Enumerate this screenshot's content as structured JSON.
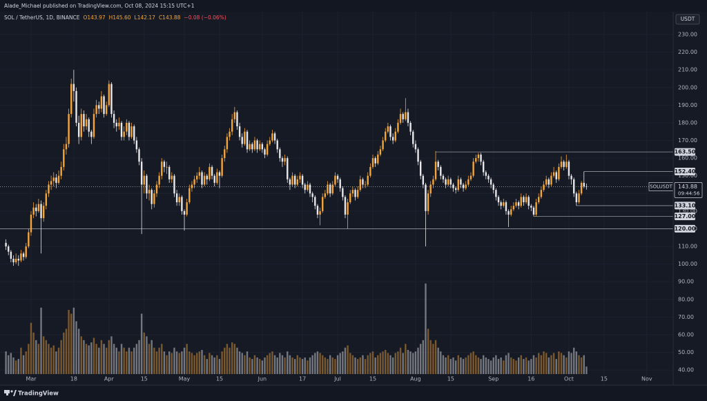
{
  "header": {
    "text": "Alade_Michael published on TradingView.com, Oct 08, 2024 15:15 UTC+1"
  },
  "footer": {
    "brand": "TradingView"
  },
  "chart_data": {
    "type": "candlestick",
    "symbol": "SOL / TetherUS, 1D, BINANCE",
    "legend": [
      "O143.97",
      "H145.60",
      "L142.17",
      "C143.88",
      "−0.08 (−0.06%)"
    ],
    "currency": "USDT",
    "up_color": "#f5a63a",
    "down_color": "#e8e8ea",
    "open": [
      112,
      110,
      107,
      103,
      101,
      103,
      102,
      106,
      104,
      110,
      118,
      128,
      132,
      130,
      134,
      126,
      133,
      140,
      145,
      147,
      149,
      146,
      150,
      155,
      165,
      168,
      185,
      202,
      198,
      180,
      172,
      185,
      178,
      182,
      175,
      172,
      185,
      190,
      188,
      195,
      185,
      190,
      202,
      185,
      180,
      178,
      180,
      172,
      175,
      180,
      172,
      178,
      170,
      165,
      158,
      145,
      150,
      140,
      142,
      134,
      140,
      145,
      150,
      158,
      155,
      155,
      148,
      150,
      140,
      135,
      138,
      130,
      128,
      135,
      143,
      145,
      148,
      150,
      152,
      145,
      150,
      148,
      155,
      150,
      146,
      152,
      150,
      160,
      165,
      172,
      175,
      182,
      186,
      178,
      172,
      168,
      175,
      165,
      168,
      165,
      170,
      165,
      168,
      165,
      162,
      168,
      170,
      174,
      170,
      165,
      160,
      158,
      160,
      148,
      145,
      150,
      145,
      148,
      150,
      145,
      142,
      145,
      140,
      138,
      133,
      128,
      130,
      138,
      140,
      145,
      140,
      145,
      150,
      148,
      143,
      138,
      128,
      135,
      140,
      142,
      138,
      142,
      148,
      145,
      145,
      150,
      155,
      160,
      157,
      162,
      165,
      170,
      175,
      178,
      172,
      170,
      175,
      180,
      185,
      182,
      186,
      180,
      175,
      168,
      165,
      158,
      150,
      145,
      130,
      140,
      145,
      148,
      158,
      155,
      150,
      148,
      145,
      148,
      145,
      143,
      142,
      148,
      145,
      143,
      145,
      148,
      150,
      158,
      160,
      162,
      158,
      152,
      150,
      148,
      145,
      142,
      138,
      135,
      133,
      135,
      130,
      128,
      131,
      133,
      135,
      133,
      138,
      135,
      138,
      133,
      132,
      128,
      135,
      138,
      142,
      145,
      148,
      145,
      150,
      152,
      148,
      155,
      158,
      155,
      158,
      150,
      148,
      140,
      135,
      140,
      146,
      143.97
    ],
    "high": [
      114,
      111,
      108,
      105,
      106,
      105,
      108,
      107,
      112,
      120,
      130,
      135,
      134,
      137,
      136,
      135,
      142,
      147,
      150,
      152,
      151,
      153,
      158,
      168,
      172,
      188,
      205,
      210,
      200,
      184,
      188,
      187,
      185,
      183,
      176,
      188,
      193,
      192,
      198,
      196,
      192,
      204,
      203,
      187,
      182,
      183,
      181,
      178,
      182,
      181,
      180,
      179,
      172,
      166,
      160,
      153,
      151,
      145,
      143,
      142,
      147,
      152,
      160,
      159,
      158,
      156,
      152,
      151,
      142,
      140,
      139,
      131,
      137,
      145,
      147,
      150,
      152,
      155,
      153,
      152,
      151,
      157,
      156,
      151,
      154,
      153,
      162,
      167,
      174,
      177,
      185,
      189,
      187,
      180,
      174,
      177,
      176,
      170,
      169,
      172,
      171,
      170,
      169,
      166,
      170,
      172,
      176,
      175,
      171,
      166,
      161,
      162,
      161,
      149,
      152,
      151,
      150,
      152,
      151,
      146,
      147,
      146,
      141,
      139,
      134,
      132,
      140,
      142,
      147,
      146,
      147,
      152,
      151,
      149,
      144,
      139,
      137,
      142,
      144,
      143,
      144,
      150,
      149,
      147,
      152,
      157,
      162,
      161,
      164,
      167,
      172,
      177,
      180,
      179,
      174,
      177,
      182,
      188,
      186,
      194,
      188,
      181,
      176,
      170,
      166,
      159,
      151,
      146,
      142,
      147,
      150,
      164,
      159,
      156,
      151,
      149,
      150,
      149,
      146,
      144,
      150,
      149,
      146,
      147,
      150,
      152,
      160,
      162,
      163,
      163,
      159,
      153,
      151,
      149,
      146,
      143,
      139,
      136,
      137,
      136,
      131,
      133,
      135,
      137,
      136,
      140,
      139,
      140,
      139,
      134,
      133,
      137,
      140,
      144,
      147,
      150,
      149,
      152,
      155,
      153,
      157,
      161,
      159,
      162,
      159,
      151,
      149,
      141,
      142,
      147,
      152.4,
      145.6
    ],
    "low": [
      108,
      105,
      101,
      99,
      100,
      99,
      101,
      102,
      103,
      109,
      116,
      126,
      127,
      129,
      106,
      124,
      131,
      138,
      142,
      144,
      143,
      145,
      148,
      153,
      162,
      166,
      183,
      192,
      178,
      168,
      170,
      175,
      176,
      172,
      168,
      171,
      183,
      185,
      186,
      183,
      184,
      189,
      183,
      177,
      175,
      176,
      170,
      170,
      173,
      170,
      171,
      168,
      163,
      156,
      117,
      140,
      137,
      136,
      131,
      132,
      138,
      143,
      148,
      152,
      151,
      146,
      146,
      138,
      133,
      133,
      128,
      119,
      127,
      134,
      141,
      143,
      146,
      148,
      143,
      144,
      145,
      147,
      148,
      144,
      145,
      143,
      149,
      158,
      163,
      170,
      173,
      180,
      176,
      170,
      166,
      167,
      163,
      164,
      163,
      164,
      163,
      164,
      163,
      160,
      161,
      167,
      169,
      168,
      163,
      158,
      155,
      156,
      146,
      142,
      144,
      143,
      144,
      146,
      143,
      140,
      141,
      138,
      135,
      131,
      126,
      122,
      129,
      137,
      139,
      138,
      139,
      144,
      146,
      141,
      136,
      126,
      120,
      134,
      138,
      136,
      137,
      141,
      143,
      143,
      144,
      149,
      154,
      155,
      156,
      161,
      164,
      169,
      174,
      170,
      168,
      169,
      174,
      179,
      180,
      181,
      178,
      173,
      166,
      163,
      156,
      148,
      143,
      110,
      128,
      138,
      143,
      147,
      153,
      148,
      146,
      143,
      144,
      143,
      141,
      140,
      141,
      143,
      141,
      142,
      144,
      147,
      149,
      157,
      158,
      156,
      150,
      148,
      146,
      143,
      140,
      136,
      133,
      131,
      132,
      128,
      121,
      127,
      130,
      132,
      131,
      132,
      133,
      134,
      131,
      130,
      127,
      127,
      134,
      137,
      141,
      144,
      143,
      144,
      149,
      146,
      147,
      154,
      153,
      154,
      148,
      145,
      138,
      133,
      134,
      139,
      143,
      142.17
    ],
    "close": [
      110,
      107,
      103,
      101,
      103,
      102,
      106,
      104,
      110,
      118,
      128,
      132,
      130,
      134,
      126,
      133,
      140,
      145,
      147,
      149,
      146,
      150,
      155,
      165,
      168,
      185,
      202,
      198,
      180,
      172,
      185,
      178,
      182,
      175,
      172,
      185,
      190,
      188,
      195,
      185,
      190,
      202,
      185,
      180,
      178,
      180,
      172,
      175,
      180,
      172,
      178,
      170,
      165,
      158,
      145,
      150,
      140,
      142,
      134,
      140,
      145,
      150,
      158,
      155,
      155,
      148,
      150,
      140,
      135,
      138,
      130,
      128,
      135,
      143,
      145,
      148,
      150,
      152,
      145,
      150,
      148,
      155,
      150,
      146,
      152,
      150,
      160,
      165,
      172,
      175,
      182,
      186,
      178,
      172,
      168,
      175,
      165,
      168,
      165,
      170,
      165,
      168,
      165,
      162,
      168,
      170,
      174,
      170,
      165,
      160,
      158,
      160,
      148,
      145,
      150,
      145,
      148,
      150,
      145,
      142,
      145,
      140,
      138,
      133,
      128,
      130,
      138,
      140,
      145,
      140,
      145,
      150,
      148,
      143,
      138,
      128,
      135,
      140,
      142,
      138,
      142,
      148,
      145,
      145,
      150,
      155,
      160,
      157,
      162,
      165,
      170,
      175,
      178,
      172,
      170,
      175,
      180,
      185,
      182,
      186,
      180,
      175,
      168,
      165,
      158,
      150,
      145,
      130,
      140,
      145,
      148,
      158,
      155,
      150,
      148,
      145,
      148,
      145,
      143,
      142,
      148,
      145,
      143,
      145,
      148,
      150,
      158,
      160,
      162,
      158,
      152,
      150,
      148,
      145,
      142,
      138,
      135,
      133,
      135,
      130,
      128,
      131,
      133,
      135,
      133,
      138,
      135,
      138,
      133,
      132,
      128,
      135,
      138,
      142,
      145,
      148,
      145,
      150,
      152,
      148,
      155,
      158,
      155,
      158,
      150,
      148,
      140,
      135,
      140,
      146,
      143.96,
      143.88
    ],
    "volume": [
      30,
      25,
      28,
      22,
      18,
      20,
      35,
      25,
      30,
      40,
      68,
      55,
      45,
      40,
      88,
      50,
      45,
      40,
      35,
      38,
      30,
      35,
      45,
      55,
      60,
      85,
      80,
      88,
      70,
      60,
      50,
      45,
      40,
      38,
      42,
      48,
      40,
      35,
      45,
      40,
      35,
      45,
      50,
      40,
      35,
      30,
      40,
      35,
      30,
      35,
      30,
      35,
      40,
      45,
      80,
      55,
      50,
      40,
      45,
      35,
      30,
      35,
      40,
      30,
      25,
      30,
      28,
      35,
      30,
      28,
      30,
      35,
      40,
      30,
      28,
      25,
      28,
      30,
      32,
      25,
      20,
      28,
      25,
      22,
      25,
      20,
      30,
      35,
      40,
      35,
      42,
      40,
      35,
      30,
      28,
      25,
      30,
      22,
      20,
      25,
      22,
      20,
      18,
      22,
      25,
      28,
      30,
      25,
      22,
      28,
      25,
      22,
      30,
      25,
      22,
      20,
      25,
      22,
      20,
      22,
      18,
      22,
      25,
      28,
      30,
      28,
      25,
      22,
      20,
      25,
      22,
      20,
      25,
      28,
      30,
      35,
      38,
      28,
      25,
      22,
      20,
      22,
      25,
      20,
      25,
      28,
      30,
      22,
      25,
      28,
      30,
      32,
      28,
      25,
      22,
      28,
      30,
      35,
      28,
      40,
      32,
      30,
      28,
      30,
      35,
      40,
      45,
      120,
      60,
      45,
      40,
      45,
      35,
      30,
      25,
      22,
      25,
      20,
      22,
      18,
      25,
      22,
      20,
      22,
      25,
      28,
      30,
      25,
      22,
      20,
      25,
      22,
      20,
      18,
      22,
      25,
      20,
      22,
      18,
      25,
      28,
      22,
      20,
      18,
      22,
      25,
      20,
      22,
      18,
      20,
      25,
      22,
      28,
      25,
      30,
      28,
      22,
      25,
      28,
      20,
      30,
      28,
      25,
      22,
      30,
      28,
      35,
      30,
      25,
      22,
      25,
      10
    ],
    "vlim": [
      0,
      480
    ],
    "xlim": [
      -2.36,
      265.5
    ],
    "xticks": [
      {
        "value": 10,
        "label": "Mar"
      },
      {
        "value": 27,
        "label": "18"
      },
      {
        "value": 41,
        "label": "Apr"
      },
      {
        "value": 55,
        "label": "15"
      },
      {
        "value": 71,
        "label": "May"
      },
      {
        "value": 85,
        "label": "15"
      },
      {
        "value": 102,
        "label": "Jun"
      },
      {
        "value": 118,
        "label": "17"
      },
      {
        "value": 132,
        "label": "Jul"
      },
      {
        "value": 146,
        "label": "15"
      },
      {
        "value": 163,
        "label": "Aug"
      },
      {
        "value": 177,
        "label": "15"
      },
      {
        "value": 194,
        "label": "Sep"
      },
      {
        "value": 209,
        "label": "16"
      },
      {
        "value": 224,
        "label": "Oct"
      },
      {
        "value": 238,
        "label": "15"
      },
      {
        "value": 255,
        "label": "Nov"
      }
    ],
    "ylim": [
      37.7,
      242.9
    ],
    "yticks": [
      {
        "value": 40,
        "label": "40.00"
      },
      {
        "value": 50,
        "label": "50.00"
      },
      {
        "value": 60,
        "label": "60.00"
      },
      {
        "value": 70,
        "label": "70.00"
      },
      {
        "value": 80,
        "label": "80.00"
      },
      {
        "value": 90,
        "label": "90.00"
      },
      {
        "value": 100,
        "label": "100.00"
      },
      {
        "value": 110,
        "label": "110.00"
      },
      {
        "value": 120,
        "label": "120.00"
      },
      {
        "value": 130,
        "label": "130.00"
      },
      {
        "value": 140,
        "label": "140.00"
      },
      {
        "value": 150,
        "label": "150.00"
      },
      {
        "value": 160,
        "label": "160.00"
      },
      {
        "value": 170,
        "label": "170.00"
      },
      {
        "value": 180,
        "label": "180.00"
      },
      {
        "value": 190,
        "label": "190.00"
      },
      {
        "value": 200,
        "label": "200.00"
      },
      {
        "value": 210,
        "label": "210.00"
      },
      {
        "value": 220,
        "label": "220.00"
      },
      {
        "value": 230,
        "label": "230.00"
      }
    ],
    "grid": true,
    "levels": [
      {
        "value": 163.5,
        "label": "163.50",
        "start": 171
      },
      {
        "value": 152.4,
        "label": "152.40",
        "start": 230
      },
      {
        "value": 133.1,
        "label": "133.10",
        "start": 227
      },
      {
        "value": 127,
        "label": "127.00",
        "start": 210
      },
      {
        "value": 120,
        "label": "120.00"
      }
    ],
    "last_price": {
      "value": 143.88,
      "label": "143.88",
      "name": "SOLUSDT",
      "countdown": "09:44:56"
    }
  }
}
